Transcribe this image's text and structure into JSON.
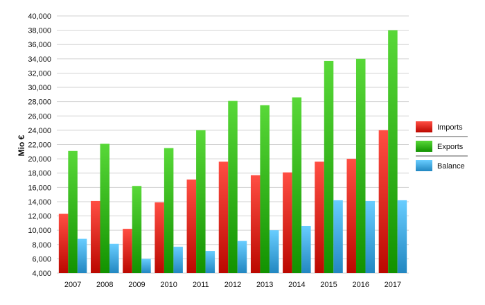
{
  "chart_data": {
    "type": "bar",
    "ylabel": "Mio €",
    "xlabel": "",
    "ylim": [
      4000,
      40000
    ],
    "ytick_step": 2000,
    "grid": true,
    "legend_placement": "right",
    "categories": [
      "2007",
      "2008",
      "2009",
      "2010",
      "2011",
      "2012",
      "2013",
      "2014",
      "2015",
      "2016",
      "2017"
    ],
    "series": [
      {
        "name": "Imports",
        "color": "#e8352a",
        "values": [
          12300,
          14100,
          10200,
          13900,
          17100,
          19600,
          17700,
          18100,
          19600,
          20000,
          24000
        ]
      },
      {
        "name": "Exports",
        "color": "#3fbf1f",
        "values": [
          21100,
          22100,
          16200,
          21500,
          24000,
          28100,
          27500,
          28600,
          33700,
          34000,
          38000
        ]
      },
      {
        "name": "Balance",
        "color": "#4fb4ee",
        "values": [
          8800,
          8100,
          6000,
          7700,
          7100,
          8500,
          10000,
          10600,
          14200,
          14100,
          14200
        ]
      }
    ]
  }
}
